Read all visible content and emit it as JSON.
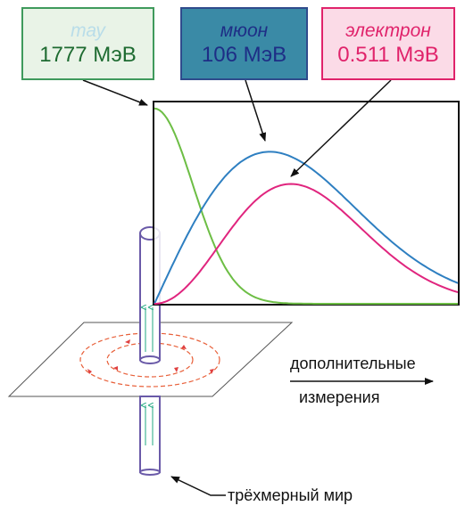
{
  "particles": [
    {
      "id": "tau",
      "name": "тау",
      "mass": "1777 МэВ",
      "name_color": "#b9dde9",
      "mass_color": "#1e6b31"
    },
    {
      "id": "mu",
      "name": "мюон",
      "mass": "106 МэВ",
      "name_color": "#1e2e86",
      "mass_color": "#1e2e86"
    },
    {
      "id": "e",
      "name": "электрон",
      "mass": "0.511 МэВ",
      "name_color": "#e0236b",
      "mass_color": "#e0236b"
    }
  ],
  "curve_colors": {
    "tau": "#6dbe45",
    "mu": "#2e7fc1",
    "e": "#e0257e"
  },
  "labels": {
    "extra_dimensions_line1": "дополнительные",
    "extra_dimensions_line2": "измерения",
    "three_d_world": "трёхмерный мир"
  }
}
